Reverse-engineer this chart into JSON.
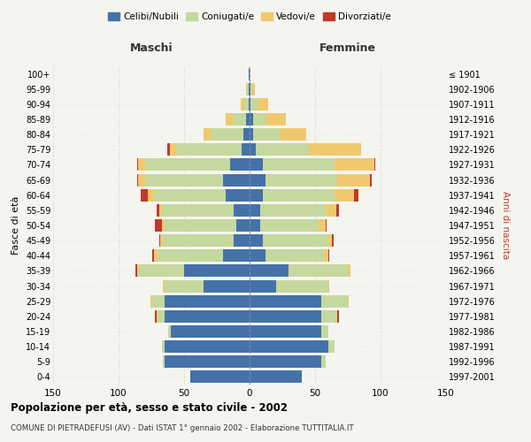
{
  "age_groups": [
    "0-4",
    "5-9",
    "10-14",
    "15-19",
    "20-24",
    "25-29",
    "30-34",
    "35-39",
    "40-44",
    "45-49",
    "50-54",
    "55-59",
    "60-64",
    "65-69",
    "70-74",
    "75-79",
    "80-84",
    "85-89",
    "90-94",
    "95-99",
    "100+"
  ],
  "birth_years": [
    "1997-2001",
    "1992-1996",
    "1987-1991",
    "1982-1986",
    "1977-1981",
    "1972-1976",
    "1967-1971",
    "1962-1966",
    "1957-1961",
    "1952-1956",
    "1947-1951",
    "1942-1946",
    "1937-1941",
    "1932-1936",
    "1927-1931",
    "1922-1926",
    "1917-1921",
    "1912-1916",
    "1907-1911",
    "1902-1906",
    "≤ 1901"
  ],
  "male": {
    "celibi": [
      45,
      65,
      65,
      60,
      65,
      65,
      35,
      50,
      20,
      12,
      10,
      12,
      18,
      20,
      15,
      6,
      5,
      3,
      1,
      1,
      1
    ],
    "coniugati": [
      0,
      1,
      2,
      2,
      5,
      10,
      30,
      35,
      50,
      55,
      55,
      55,
      55,
      60,
      65,
      50,
      25,
      10,
      3,
      1,
      0
    ],
    "vedovi": [
      0,
      0,
      0,
      0,
      1,
      1,
      1,
      1,
      3,
      1,
      2,
      2,
      5,
      5,
      5,
      5,
      5,
      5,
      3,
      1,
      0
    ],
    "divorziati": [
      0,
      0,
      0,
      0,
      1,
      0,
      0,
      1,
      1,
      1,
      5,
      2,
      5,
      1,
      1,
      2,
      0,
      0,
      0,
      0,
      0
    ]
  },
  "female": {
    "nubili": [
      40,
      55,
      60,
      55,
      55,
      55,
      20,
      30,
      12,
      10,
      8,
      8,
      10,
      12,
      10,
      5,
      3,
      3,
      1,
      1,
      0
    ],
    "coniugate": [
      0,
      3,
      5,
      5,
      12,
      20,
      40,
      45,
      45,
      50,
      45,
      50,
      55,
      55,
      55,
      40,
      20,
      10,
      5,
      1,
      0
    ],
    "vedove": [
      0,
      0,
      0,
      0,
      0,
      1,
      1,
      2,
      3,
      3,
      5,
      8,
      15,
      25,
      30,
      40,
      20,
      15,
      8,
      2,
      1
    ],
    "divorziate": [
      0,
      0,
      0,
      0,
      1,
      0,
      0,
      0,
      1,
      1,
      1,
      2,
      3,
      1,
      1,
      0,
      0,
      0,
      0,
      0,
      0
    ]
  },
  "colors": {
    "celibi": "#4472a8",
    "coniugati": "#c5d89e",
    "vedovi": "#f0c96e",
    "divorziati": "#c0392b"
  },
  "xlim": 150,
  "title": "Popolazione per età, sesso e stato civile - 2002",
  "subtitle": "COMUNE DI PIETRADEFUSI (AV) - Dati ISTAT 1° gennaio 2002 - Elaborazione TUTTITALIA.IT",
  "ylabel": "Fasce di età",
  "right_label": "Anni di nascita",
  "bg_color": "#f5f5f0",
  "grid_color": "#cccccc"
}
